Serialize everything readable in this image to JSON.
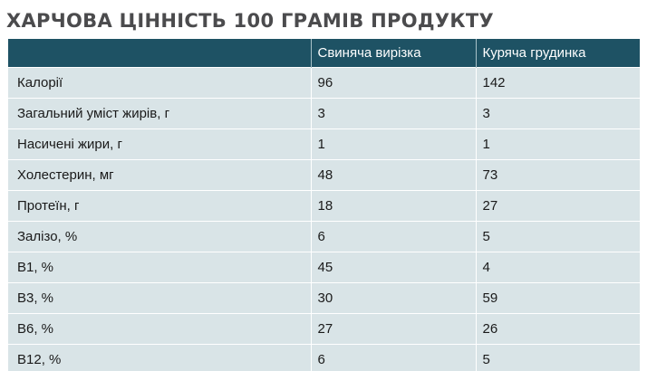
{
  "title": "ХАРЧОВА ЦІННІСТЬ 100 ГРАМІВ ПРОДУКТУ",
  "headers": [
    "",
    "Свиняча вирізка",
    "Куряча грудинка"
  ],
  "rows": [
    {
      "label": "Калорії",
      "pork": "96",
      "chicken": "142"
    },
    {
      "label": "Загальний уміст жирів, г",
      "pork": "3",
      "chicken": "3"
    },
    {
      "label": "Насичені жири, г",
      "pork": "1",
      "chicken": "1"
    },
    {
      "label": "Холестерин, мг",
      "pork": "48",
      "chicken": "73"
    },
    {
      "label": "Протеїн, г",
      "pork": "18",
      "chicken": "27"
    },
    {
      "label": "Залізо, %",
      "pork": "6",
      "chicken": "5"
    },
    {
      "label": "B1, %",
      "pork": "45",
      "chicken": "4"
    },
    {
      "label": "B3, %",
      "pork": "30",
      "chicken": "59"
    },
    {
      "label": "B6, %",
      "pork": "27",
      "chicken": "26"
    },
    {
      "label": "B12, %",
      "pork": "6",
      "chicken": "5"
    }
  ],
  "colors": {
    "header_bg": "#1e5264",
    "row_bg": "#d9e4e7",
    "title_text": "#4b4b4d"
  }
}
